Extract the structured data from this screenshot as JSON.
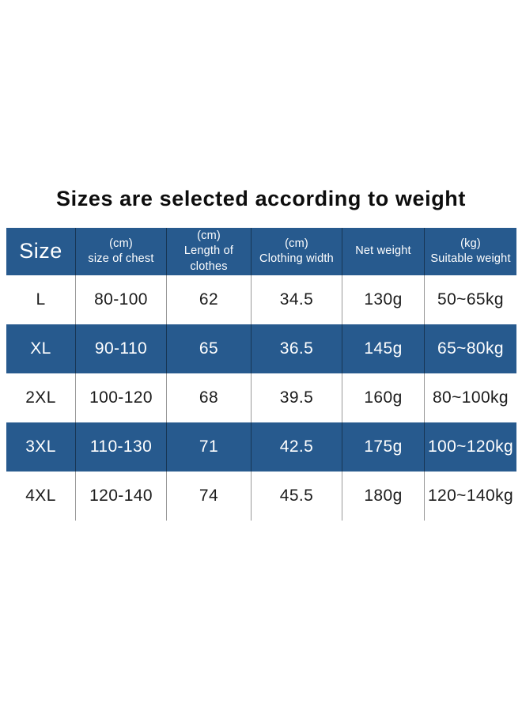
{
  "title": "Sizes are selected according to weight",
  "colors": {
    "header_bg": "#275A8E",
    "stripe_row_bg": "#275A8E",
    "header_text": "#FFFFFF",
    "body_text": "#1C1C1C",
    "title_text": "#0D0D0D",
    "divider": "#8F8F8F",
    "page_bg": "#FFFFFF"
  },
  "chart_data": {
    "type": "table",
    "title": "Sizes are selected according to weight",
    "columns": [
      "Size",
      "(cm) size of chest",
      "(cm) Length of clothes",
      "(cm) Clothing width",
      "Net weight",
      "(kg) Suitable weight"
    ],
    "rows": [
      [
        "L",
        "80-100",
        "62",
        "34.5",
        "130g",
        "50~65kg"
      ],
      [
        "XL",
        "90-110",
        "65",
        "36.5",
        "145g",
        "65~80kg"
      ],
      [
        "2XL",
        "100-120",
        "68",
        "39.5",
        "160g",
        "80~100kg"
      ],
      [
        "3XL",
        "110-130",
        "71",
        "42.5",
        "175g",
        "100~120kg"
      ],
      [
        "4XL",
        "120-140",
        "74",
        "45.5",
        "180g",
        "120~140kg"
      ]
    ],
    "layout_hints": {
      "striped_rows": [
        "XL",
        "3XL"
      ],
      "header_style": "solid blue with white text",
      "grid": "vertical dividers only, no outer border"
    }
  },
  "table": {
    "headers": [
      {
        "label": "Size"
      },
      {
        "lines": [
          "(cm)",
          "size of chest"
        ]
      },
      {
        "lines": [
          "(cm)",
          "Length of",
          "clothes"
        ]
      },
      {
        "lines": [
          "(cm)",
          "Clothing width"
        ]
      },
      {
        "lines": [
          "Net weight"
        ]
      },
      {
        "lines": [
          "(kg)",
          "Suitable weight"
        ]
      }
    ],
    "rows": [
      {
        "highlight": false,
        "cells": [
          "L",
          "80-100",
          "62",
          "34.5",
          "130g",
          "50~65kg"
        ]
      },
      {
        "highlight": true,
        "cells": [
          "XL",
          "90-110",
          "65",
          "36.5",
          "145g",
          "65~80kg"
        ]
      },
      {
        "highlight": false,
        "cells": [
          "2XL",
          "100-120",
          "68",
          "39.5",
          "160g",
          "80~100kg"
        ]
      },
      {
        "highlight": true,
        "cells": [
          "3XL",
          "110-130",
          "71",
          "42.5",
          "175g",
          "100~120kg"
        ]
      },
      {
        "highlight": false,
        "cells": [
          "4XL",
          "120-140",
          "74",
          "45.5",
          "180g",
          "120~140kg"
        ]
      }
    ]
  }
}
